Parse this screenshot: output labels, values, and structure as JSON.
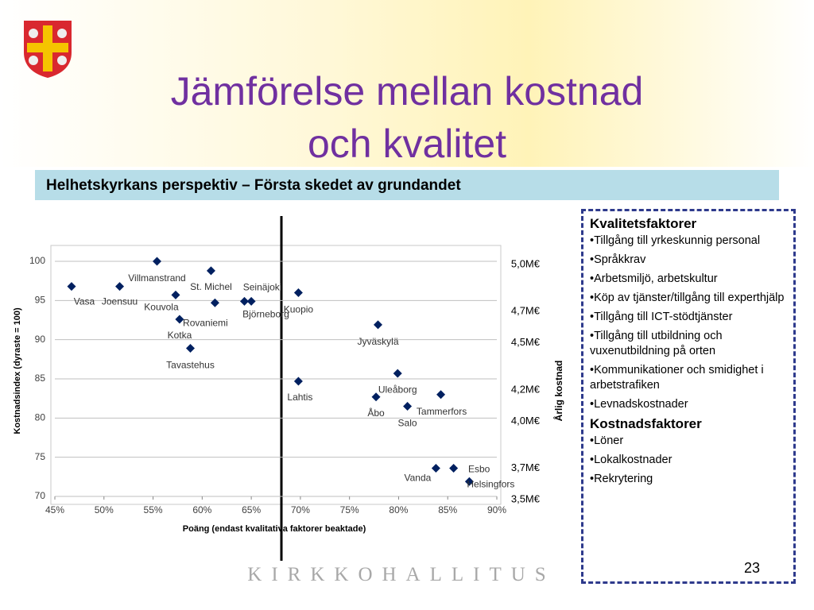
{
  "header": {
    "title_lines": [
      "Jämförelse mellan kostnad",
      "och kvalitet"
    ],
    "subtitle": "Helhetskyrkans perspektiv – Första skedet av grundandet"
  },
  "chart_data": {
    "type": "scatter",
    "point_labels": [
      "Vasa",
      "Joensuu",
      "Villmanstrand",
      "St. Michel",
      "Kouvola",
      "Rovaniemi",
      "Kotka",
      "Tavastehus",
      "Björneborg",
      "Seinäjoki",
      "Kuopio",
      "Jyväskylä",
      "Lahtis",
      "Uleåborg",
      "Åbo",
      "Salo",
      "Tammerfors",
      "Vanda",
      "Esbo",
      "Helsingfors"
    ],
    "x": [
      46.7,
      51.6,
      55.4,
      60.9,
      57.3,
      61.3,
      57.7,
      58.8,
      64.3,
      65.0,
      69.8,
      77.9,
      69.8,
      79.9,
      77.7,
      80.9,
      84.3,
      83.8,
      85.6,
      87.2
    ],
    "values": [
      96.8,
      96.8,
      100.0,
      98.8,
      95.7,
      94.7,
      92.6,
      88.9,
      94.9,
      94.9,
      96.0,
      91.9,
      84.7,
      85.7,
      82.7,
      81.5,
      83.0,
      73.6,
      73.6,
      71.9
    ],
    "color": "#002060",
    "xlabel": "Poäng (endast kvalitativa faktorer beaktade)",
    "ylabel": "Kostnadsindex (dyraste = 100)",
    "y2label": "Årlig kostnad",
    "xlim": [
      45,
      90
    ],
    "xticks": [
      {
        "value": 45,
        "label": "45%"
      },
      {
        "value": 50,
        "label": "50%"
      },
      {
        "value": 55,
        "label": "55%"
      },
      {
        "value": 60,
        "label": "60%"
      },
      {
        "value": 65,
        "label": "65%"
      },
      {
        "value": 70,
        "label": "70%"
      },
      {
        "value": 75,
        "label": "75%"
      },
      {
        "value": 80,
        "label": "80%"
      },
      {
        "value": 85,
        "label": "85%"
      },
      {
        "value": 90,
        "label": "90%"
      }
    ],
    "ylim": [
      70,
      100
    ],
    "yticks": [
      70,
      75,
      80,
      85,
      90,
      95,
      100
    ],
    "y2lim": [
      3.5,
      5.0
    ],
    "y2ticks": [
      {
        "value": 5.0,
        "label": "5,0M€"
      },
      {
        "value": 4.7,
        "label": "4,7M€"
      },
      {
        "value": 4.5,
        "label": "4,5M€"
      },
      {
        "value": 4.2,
        "label": "4,2M€"
      },
      {
        "value": 4.0,
        "label": "4,0M€"
      },
      {
        "value": 3.7,
        "label": "3,7M€"
      },
      {
        "value": 3.5,
        "label": "3,5M€"
      }
    ],
    "grid": true
  },
  "sidebar": {
    "quality": {
      "heading": "Kvalitetsfaktorer",
      "items": [
        "•Tillgång till yrkeskunnig personal",
        "•Språkkrav",
        "•Arbetsmiljö, arbetskultur",
        "•Köp av tjänster/tillgång till experthjälp",
        "•Tillgång till ICT-stödtjänster",
        "•Tillgång till utbildning och vuxenutbildning på orten",
        "•Kommunikationer och smidighet i arbetstrafiken",
        "•Levnadskostnader"
      ]
    },
    "cost": {
      "heading": "Kostnadsfaktorer",
      "items": [
        "•Löner",
        "•Lokalkostnader",
        "•Rekrytering"
      ]
    }
  },
  "footer": {
    "brand": "KIRKKOHALLITUS",
    "page": "23"
  }
}
